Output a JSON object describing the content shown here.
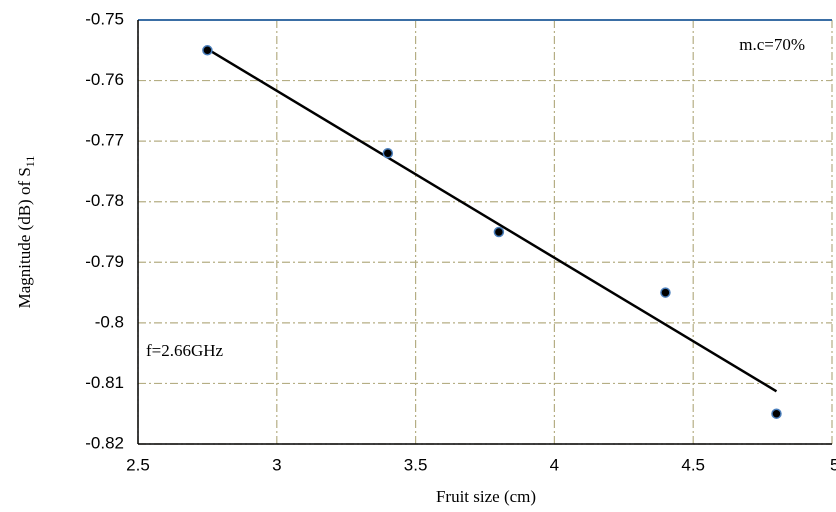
{
  "chart_data": {
    "type": "scatter",
    "xlabel": "Fruit size (cm)",
    "ylabel": "Magnitude (dB) of S",
    "ylabel_subscript": "11",
    "annotations": [
      "m.c=70%",
      "f=2.66GHz"
    ],
    "x": [
      2.75,
      3.4,
      3.8,
      4.4,
      4.8
    ],
    "series": [
      {
        "color": "#000000",
        "values": [
          -0.755,
          -0.772,
          -0.785,
          -0.795,
          -0.815
        ]
      }
    ],
    "trendline": {
      "color": "#000000",
      "x": [
        2.75,
        4.8
      ],
      "values": [
        -0.7548,
        -0.8113
      ]
    },
    "xlim": [
      2.5,
      5
    ],
    "xticks": [
      2.5,
      3,
      3.5,
      4,
      4.5,
      5
    ],
    "ylim": [
      -0.82,
      -0.75
    ],
    "yticks": [
      -0.75,
      -0.76,
      -0.77,
      -0.78,
      -0.79,
      -0.8,
      -0.81,
      -0.82
    ],
    "grid": true
  }
}
